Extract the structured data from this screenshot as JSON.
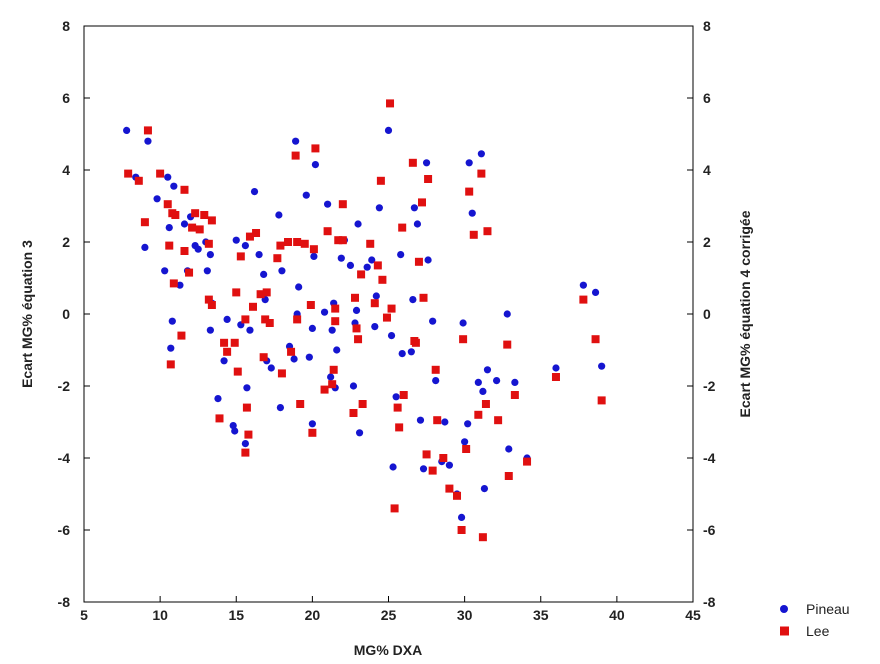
{
  "chart_data": {
    "type": "scatter",
    "title": "",
    "xlabel": "MG% DXA",
    "ylabel_left": "Ecart MG% équation 3",
    "ylabel_right": "Ecart MG% équation 4 corrigée",
    "xlim": [
      5,
      45
    ],
    "ylim": [
      -8,
      8
    ],
    "x_ticks": [
      5,
      10,
      15,
      20,
      25,
      30,
      35,
      40,
      45
    ],
    "y_ticks": [
      -8,
      -6,
      -4,
      -2,
      0,
      2,
      4,
      6,
      8
    ],
    "grid": false,
    "legend_position": "bottom-right",
    "series": [
      {
        "name": "Pineau",
        "marker": "circle",
        "color": "#1515d0",
        "points": [
          [
            7.8,
            5.1
          ],
          [
            8.4,
            3.8
          ],
          [
            9.0,
            1.85
          ],
          [
            9.2,
            4.8
          ],
          [
            9.8,
            3.2
          ],
          [
            10.3,
            1.2
          ],
          [
            10.5,
            3.8
          ],
          [
            10.6,
            2.4
          ],
          [
            10.7,
            -0.95
          ],
          [
            10.8,
            -0.2
          ],
          [
            10.9,
            3.55
          ],
          [
            11.3,
            0.8
          ],
          [
            11.6,
            2.5
          ],
          [
            11.8,
            1.2
          ],
          [
            12.0,
            2.7
          ],
          [
            12.3,
            1.9
          ],
          [
            12.5,
            1.8
          ],
          [
            13.0,
            2.0
          ],
          [
            13.1,
            1.2
          ],
          [
            13.3,
            1.65
          ],
          [
            13.4,
            0.3
          ],
          [
            13.3,
            -0.45
          ],
          [
            13.8,
            -2.35
          ],
          [
            14.2,
            -1.3
          ],
          [
            14.4,
            -0.15
          ],
          [
            14.8,
            -3.1
          ],
          [
            14.9,
            -3.25
          ],
          [
            15.0,
            2.05
          ],
          [
            15.3,
            -0.3
          ],
          [
            15.6,
            1.9
          ],
          [
            15.7,
            -2.05
          ],
          [
            15.6,
            -3.6
          ],
          [
            15.9,
            -0.45
          ],
          [
            16.2,
            3.4
          ],
          [
            16.5,
            1.65
          ],
          [
            16.8,
            1.1
          ],
          [
            16.9,
            0.4
          ],
          [
            17.0,
            -1.3
          ],
          [
            17.3,
            -1.5
          ],
          [
            17.8,
            2.75
          ],
          [
            17.9,
            -2.6
          ],
          [
            18.0,
            1.2
          ],
          [
            18.5,
            -0.9
          ],
          [
            18.8,
            -1.25
          ],
          [
            18.9,
            4.8
          ],
          [
            19.0,
            0.0
          ],
          [
            19.1,
            0.75
          ],
          [
            19.6,
            3.3
          ],
          [
            19.8,
            -1.2
          ],
          [
            20.0,
            -0.4
          ],
          [
            20.0,
            -3.05
          ],
          [
            20.1,
            1.6
          ],
          [
            20.2,
            4.15
          ],
          [
            20.8,
            0.05
          ],
          [
            21.0,
            3.05
          ],
          [
            21.2,
            -1.75
          ],
          [
            21.3,
            -0.45
          ],
          [
            21.4,
            0.3
          ],
          [
            21.6,
            -1.0
          ],
          [
            21.5,
            -2.05
          ],
          [
            21.9,
            1.55
          ],
          [
            22.1,
            2.05
          ],
          [
            22.5,
            1.35
          ],
          [
            22.7,
            -2.0
          ],
          [
            22.8,
            -0.25
          ],
          [
            22.9,
            0.1
          ],
          [
            23.0,
            2.5
          ],
          [
            23.1,
            -3.3
          ],
          [
            23.6,
            1.3
          ],
          [
            23.9,
            1.5
          ],
          [
            24.1,
            -0.35
          ],
          [
            24.2,
            0.5
          ],
          [
            24.4,
            2.95
          ],
          [
            25.0,
            5.1
          ],
          [
            25.2,
            -0.6
          ],
          [
            25.3,
            -4.25
          ],
          [
            25.5,
            -2.3
          ],
          [
            25.8,
            1.65
          ],
          [
            25.9,
            -1.1
          ],
          [
            26.5,
            -1.05
          ],
          [
            26.7,
            2.95
          ],
          [
            26.6,
            0.4
          ],
          [
            26.9,
            2.5
          ],
          [
            27.1,
            -2.95
          ],
          [
            27.3,
            -4.3
          ],
          [
            27.5,
            4.2
          ],
          [
            27.6,
            1.5
          ],
          [
            27.9,
            -0.2
          ],
          [
            28.1,
            -1.85
          ],
          [
            28.5,
            -4.1
          ],
          [
            28.7,
            -3.0
          ],
          [
            29.0,
            -4.2
          ],
          [
            29.5,
            -5.0
          ],
          [
            29.8,
            -5.65
          ],
          [
            29.9,
            -0.25
          ],
          [
            30.0,
            -3.55
          ],
          [
            30.2,
            -3.05
          ],
          [
            30.3,
            4.2
          ],
          [
            30.5,
            2.8
          ],
          [
            30.9,
            -1.9
          ],
          [
            31.1,
            4.45
          ],
          [
            31.3,
            -4.85
          ],
          [
            31.2,
            -2.15
          ],
          [
            31.5,
            -1.55
          ],
          [
            32.1,
            -1.85
          ],
          [
            32.8,
            0.0
          ],
          [
            32.9,
            -3.75
          ],
          [
            33.3,
            -1.9
          ],
          [
            34.1,
            -4.0
          ],
          [
            36.0,
            -1.5
          ],
          [
            37.8,
            0.8
          ],
          [
            38.6,
            0.6
          ],
          [
            39.0,
            -1.45
          ]
        ]
      },
      {
        "name": "Lee",
        "marker": "square",
        "color": "#e01010",
        "points": [
          [
            7.9,
            3.9
          ],
          [
            8.6,
            3.7
          ],
          [
            9.0,
            2.55
          ],
          [
            9.2,
            5.1
          ],
          [
            10.0,
            3.9
          ],
          [
            10.5,
            3.05
          ],
          [
            10.6,
            1.9
          ],
          [
            10.8,
            2.8
          ],
          [
            10.7,
            -1.4
          ],
          [
            10.9,
            0.85
          ],
          [
            11.0,
            2.75
          ],
          [
            11.4,
            -0.6
          ],
          [
            11.6,
            1.75
          ],
          [
            11.6,
            3.45
          ],
          [
            11.9,
            1.15
          ],
          [
            12.1,
            2.4
          ],
          [
            12.3,
            2.8
          ],
          [
            12.6,
            2.35
          ],
          [
            12.9,
            2.75
          ],
          [
            13.2,
            0.4
          ],
          [
            13.2,
            1.95
          ],
          [
            13.4,
            2.6
          ],
          [
            13.4,
            0.25
          ],
          [
            13.9,
            -2.9
          ],
          [
            14.2,
            -0.8
          ],
          [
            14.4,
            -1.05
          ],
          [
            14.9,
            -0.8
          ],
          [
            15.0,
            0.6
          ],
          [
            15.1,
            -1.6
          ],
          [
            15.3,
            1.6
          ],
          [
            15.6,
            -0.15
          ],
          [
            15.7,
            -2.6
          ],
          [
            15.6,
            -3.85
          ],
          [
            15.8,
            -3.35
          ],
          [
            15.9,
            2.15
          ],
          [
            16.1,
            0.2
          ],
          [
            16.3,
            2.25
          ],
          [
            16.6,
            0.55
          ],
          [
            16.8,
            -1.2
          ],
          [
            16.9,
            -0.15
          ],
          [
            17.0,
            0.6
          ],
          [
            17.2,
            -0.25
          ],
          [
            17.7,
            1.55
          ],
          [
            17.9,
            1.9
          ],
          [
            18.0,
            -1.65
          ],
          [
            18.4,
            2.0
          ],
          [
            18.6,
            -1.05
          ],
          [
            18.9,
            4.4
          ],
          [
            19.0,
            -0.15
          ],
          [
            19.0,
            2.0
          ],
          [
            19.2,
            -2.5
          ],
          [
            19.5,
            1.95
          ],
          [
            19.9,
            0.25
          ],
          [
            20.0,
            -3.3
          ],
          [
            20.1,
            1.8
          ],
          [
            20.2,
            4.6
          ],
          [
            20.8,
            -2.1
          ],
          [
            21.0,
            2.3
          ],
          [
            21.3,
            -1.95
          ],
          [
            21.4,
            -1.55
          ],
          [
            21.5,
            0.15
          ],
          [
            21.5,
            -0.2
          ],
          [
            21.7,
            2.05
          ],
          [
            22.0,
            3.05
          ],
          [
            22.0,
            2.05
          ],
          [
            22.7,
            -2.75
          ],
          [
            22.8,
            0.45
          ],
          [
            22.9,
            -0.4
          ],
          [
            23.0,
            -0.7
          ],
          [
            23.2,
            1.1
          ],
          [
            23.3,
            -2.5
          ],
          [
            23.8,
            1.95
          ],
          [
            24.1,
            0.3
          ],
          [
            24.3,
            1.35
          ],
          [
            24.5,
            3.7
          ],
          [
            24.6,
            0.95
          ],
          [
            24.9,
            -0.1
          ],
          [
            25.1,
            5.85
          ],
          [
            25.2,
            0.15
          ],
          [
            25.4,
            -5.4
          ],
          [
            25.6,
            -2.6
          ],
          [
            25.7,
            -3.15
          ],
          [
            25.9,
            2.4
          ],
          [
            26.0,
            -2.25
          ],
          [
            26.6,
            4.2
          ],
          [
            26.7,
            -0.75
          ],
          [
            26.8,
            -0.8
          ],
          [
            27.0,
            1.45
          ],
          [
            27.2,
            3.1
          ],
          [
            27.3,
            0.45
          ],
          [
            27.5,
            -3.9
          ],
          [
            27.6,
            3.75
          ],
          [
            27.9,
            -4.35
          ],
          [
            28.1,
            -1.55
          ],
          [
            28.2,
            -2.95
          ],
          [
            28.6,
            -4.0
          ],
          [
            29.0,
            -4.85
          ],
          [
            29.5,
            -5.05
          ],
          [
            29.8,
            -6.0
          ],
          [
            29.9,
            -0.7
          ],
          [
            30.1,
            -3.75
          ],
          [
            30.3,
            3.4
          ],
          [
            30.6,
            2.2
          ],
          [
            30.9,
            -2.8
          ],
          [
            31.1,
            3.9
          ],
          [
            31.2,
            -6.2
          ],
          [
            31.4,
            -2.5
          ],
          [
            31.5,
            2.3
          ],
          [
            32.2,
            -2.95
          ],
          [
            32.8,
            -0.85
          ],
          [
            32.9,
            -4.5
          ],
          [
            33.3,
            -2.25
          ],
          [
            34.1,
            -4.1
          ],
          [
            36.0,
            -1.75
          ],
          [
            37.8,
            0.4
          ],
          [
            38.6,
            -0.7
          ],
          [
            39.0,
            -2.4
          ]
        ]
      }
    ]
  }
}
